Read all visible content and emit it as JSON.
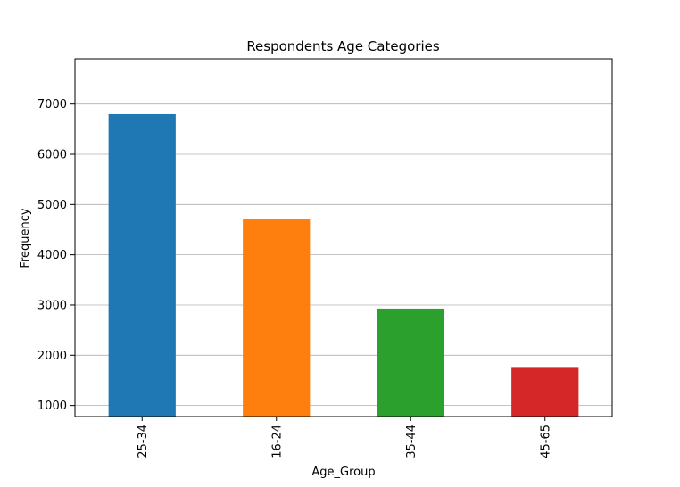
{
  "chart_data": {
    "type": "bar",
    "title": "Respondents Age Categories",
    "xlabel": "Age_Group",
    "ylabel": "Frequency",
    "categories": [
      "25-34",
      "16-24",
      "35-44",
      "45-65"
    ],
    "values": [
      6800,
      4720,
      2930,
      1750
    ],
    "colors": [
      "#1f77b4",
      "#ff7f0e",
      "#2ca02c",
      "#d62728"
    ],
    "ylim": [
      780,
      7900
    ],
    "yticks": [
      1000,
      2000,
      3000,
      4000,
      5000,
      6000,
      7000
    ],
    "grid": "y",
    "legend": "none"
  }
}
